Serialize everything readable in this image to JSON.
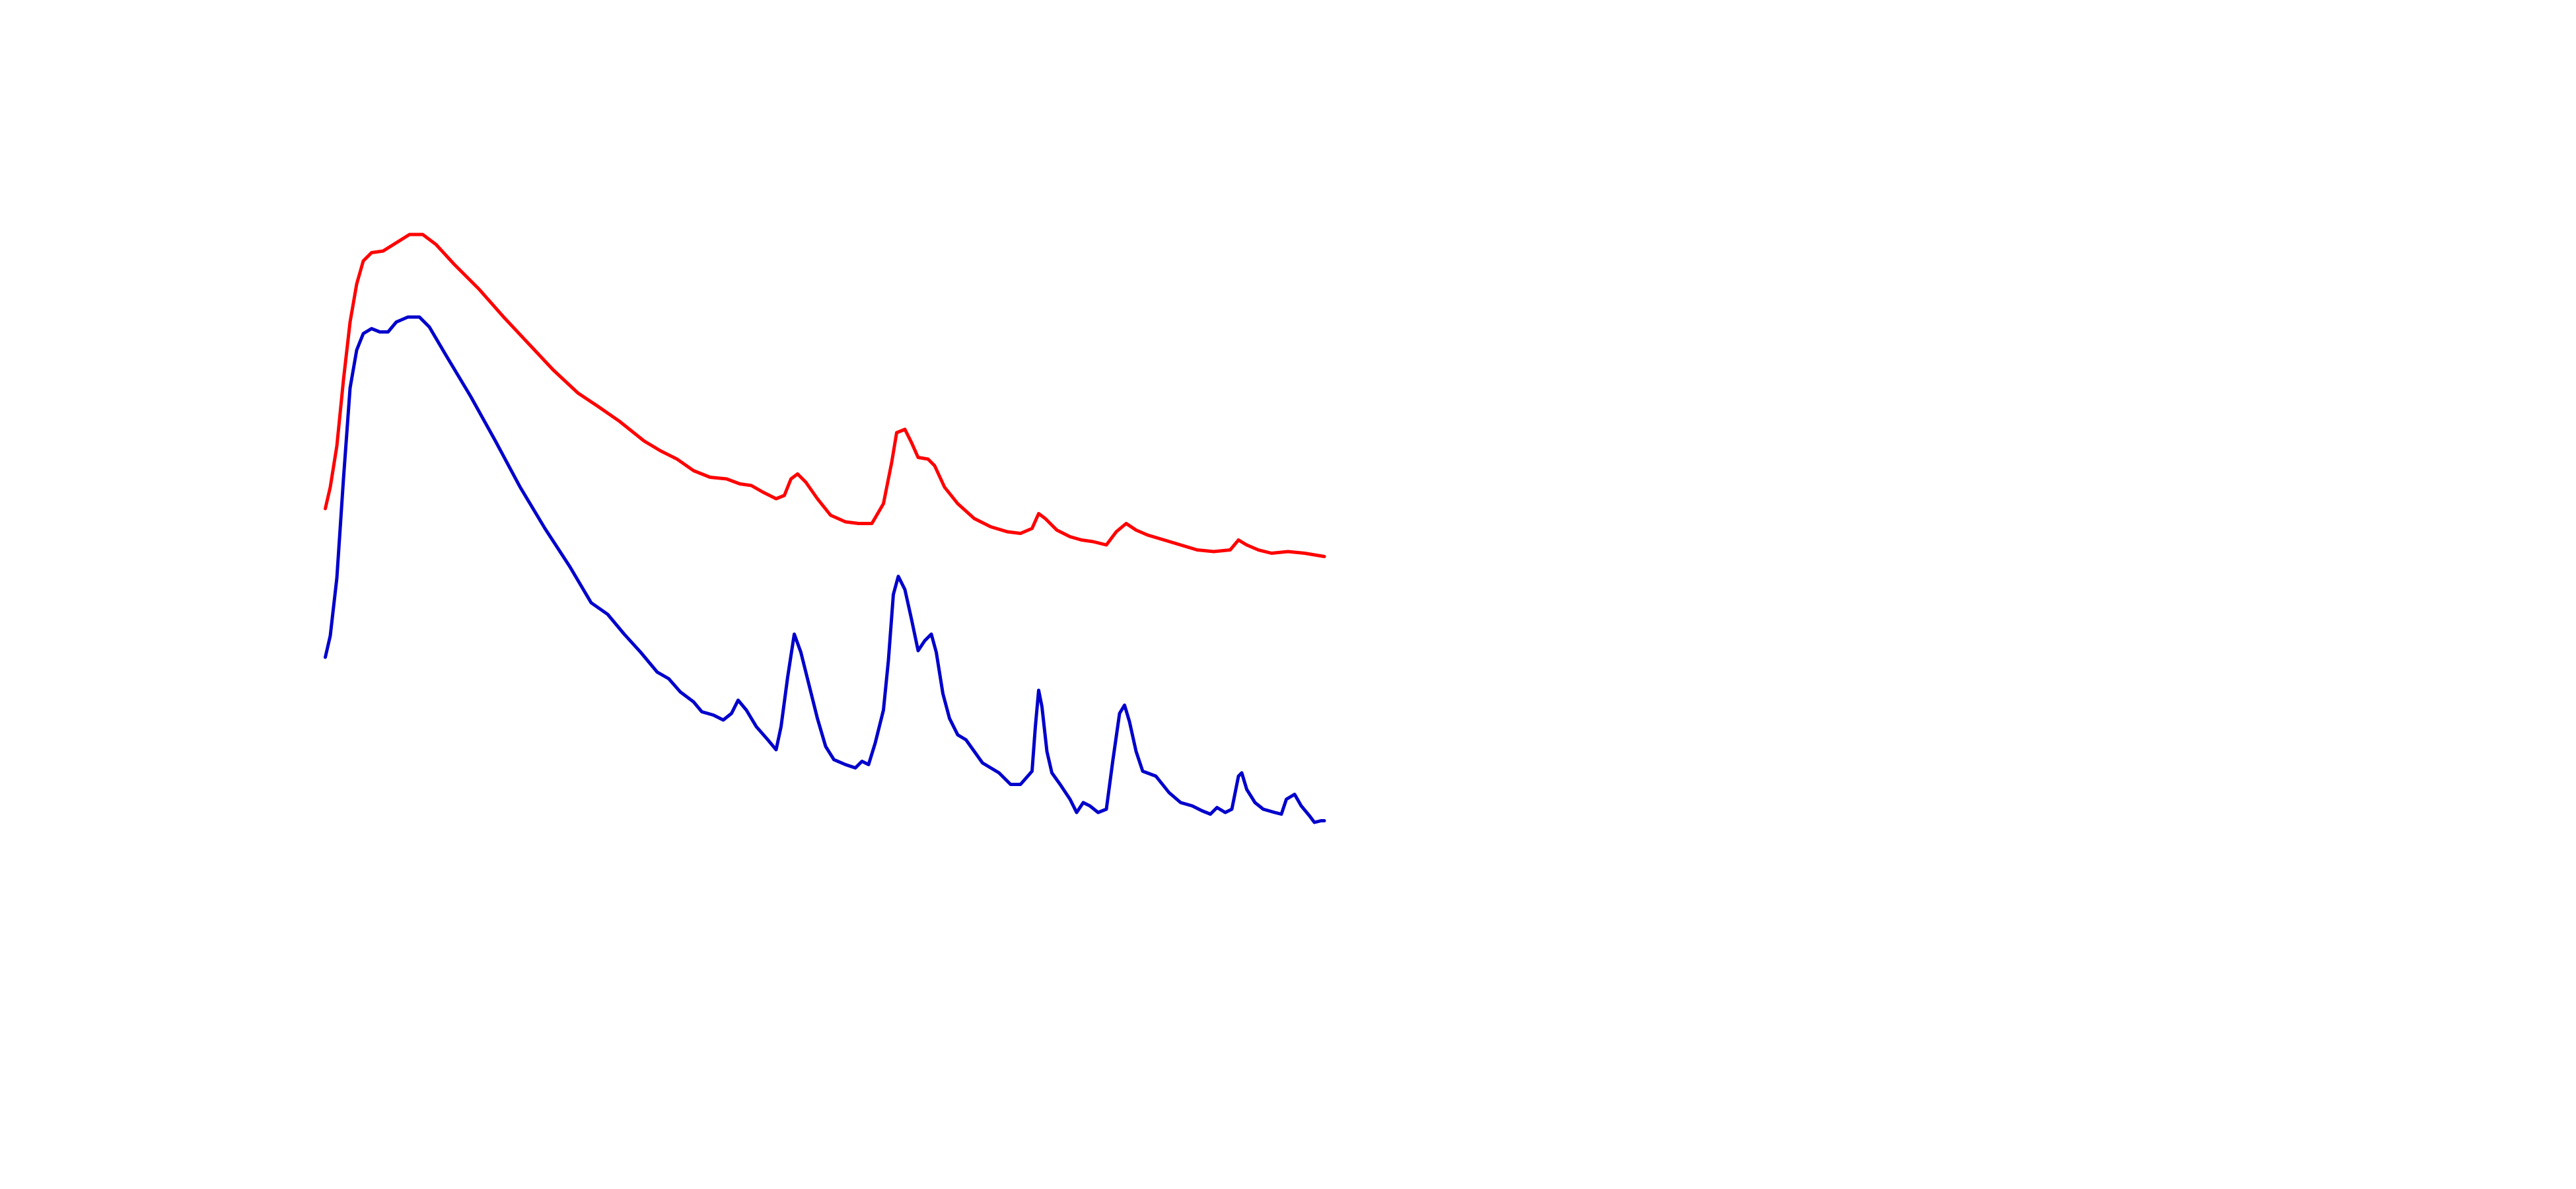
{
  "chart_data": {
    "type": "line",
    "xlim": [
      0,
      605
    ],
    "ylim": [
      0,
      720
    ],
    "series": [
      {
        "color": "#ff0000",
        "x": [
          0,
          3,
          7,
          11,
          15,
          19,
          23,
          28,
          35,
          43,
          51,
          59,
          67,
          78,
          93,
          108,
          123,
          138,
          153,
          165,
          178,
          193,
          203,
          213,
          223,
          233,
          243,
          251,
          258,
          265,
          273,
          278,
          282,
          286,
          291,
          298,
          306,
          315,
          323,
          331,
          338,
          343,
          346,
          351,
          355,
          359,
          365,
          369,
          375,
          383,
          393,
          403,
          413,
          421,
          428,
          432,
          436,
          443,
          451,
          458,
          465,
          473,
          479,
          485,
          491,
          498,
          508,
          518,
          528,
          538,
          548,
          553,
          558,
          565,
          573,
          583,
          593,
          605
        ],
        "values": [
          412,
          425,
          450,
          490,
          525,
          548,
          562,
          567,
          568,
          573,
          578,
          578,
          572,
          560,
          545,
          528,
          512,
          496,
          482,
          474,
          465,
          453,
          447,
          442,
          435,
          431,
          430,
          427,
          426,
          422,
          418,
          420,
          430,
          433,
          428,
          418,
          408,
          404,
          403,
          403,
          415,
          440,
          458,
          460,
          452,
          443,
          442,
          438,
          425,
          415,
          406,
          401,
          398,
          397,
          400,
          409,
          406,
          399,
          395,
          393,
          392,
          390,
          398,
          403,
          399,
          396,
          393,
          390,
          387,
          386,
          387,
          393,
          390,
          387,
          385,
          386,
          385,
          383
        ]
      },
      {
        "color": "#0000cc",
        "x": [
          0,
          3,
          7,
          11,
          15,
          19,
          23,
          28,
          33,
          38,
          43,
          50,
          57,
          63,
          73,
          88,
          103,
          118,
          133,
          148,
          161,
          171,
          181,
          191,
          201,
          208,
          215,
          223,
          228,
          235,
          241,
          246,
          250,
          255,
          261,
          268,
          273,
          276,
          280,
          284,
          288,
          293,
          298,
          303,
          308,
          315,
          321,
          325,
          329,
          333,
          338,
          341,
          344,
          347,
          351,
          355,
          359,
          363,
          367,
          370,
          374,
          378,
          383,
          388,
          393,
          398,
          408,
          415,
          421,
          428,
          430,
          432,
          434,
          437,
          440,
          445,
          451,
          455,
          459,
          463,
          468,
          473,
          477,
          481,
          484,
          487,
          491,
          495,
          503,
          511,
          518,
          525,
          531,
          536,
          540,
          545,
          549,
          553,
          555,
          558,
          563,
          568,
          575,
          579,
          582,
          587,
          591,
          596,
          599,
          603,
          605
        ],
        "values": [
          322,
          335,
          370,
          430,
          485,
          508,
          518,
          521,
          519,
          519,
          525,
          528,
          528,
          522,
          505,
          480,
          453,
          425,
          400,
          377,
          355,
          348,
          336,
          325,
          313,
          309,
          301,
          295,
          289,
          287,
          284,
          288,
          296,
          290,
          280,
          272,
          266,
          280,
          310,
          336,
          325,
          305,
          285,
          268,
          260,
          257,
          255,
          259,
          257,
          270,
          290,
          320,
          360,
          371,
          363,
          345,
          326,
          332,
          336,
          325,
          300,
          285,
          275,
          272,
          265,
          258,
          252,
          245,
          245,
          253,
          280,
          302,
          292,
          265,
          252,
          245,
          236,
          228,
          234,
          232,
          228,
          230,
          260,
          288,
          293,
          283,
          265,
          253,
          250,
          240,
          234,
          232,
          229,
          227,
          231,
          228,
          230,
          250,
          252,
          242,
          234,
          230,
          228,
          227,
          236,
          239,
          232,
          226,
          222,
          223,
          223
        ]
      }
    ]
  }
}
